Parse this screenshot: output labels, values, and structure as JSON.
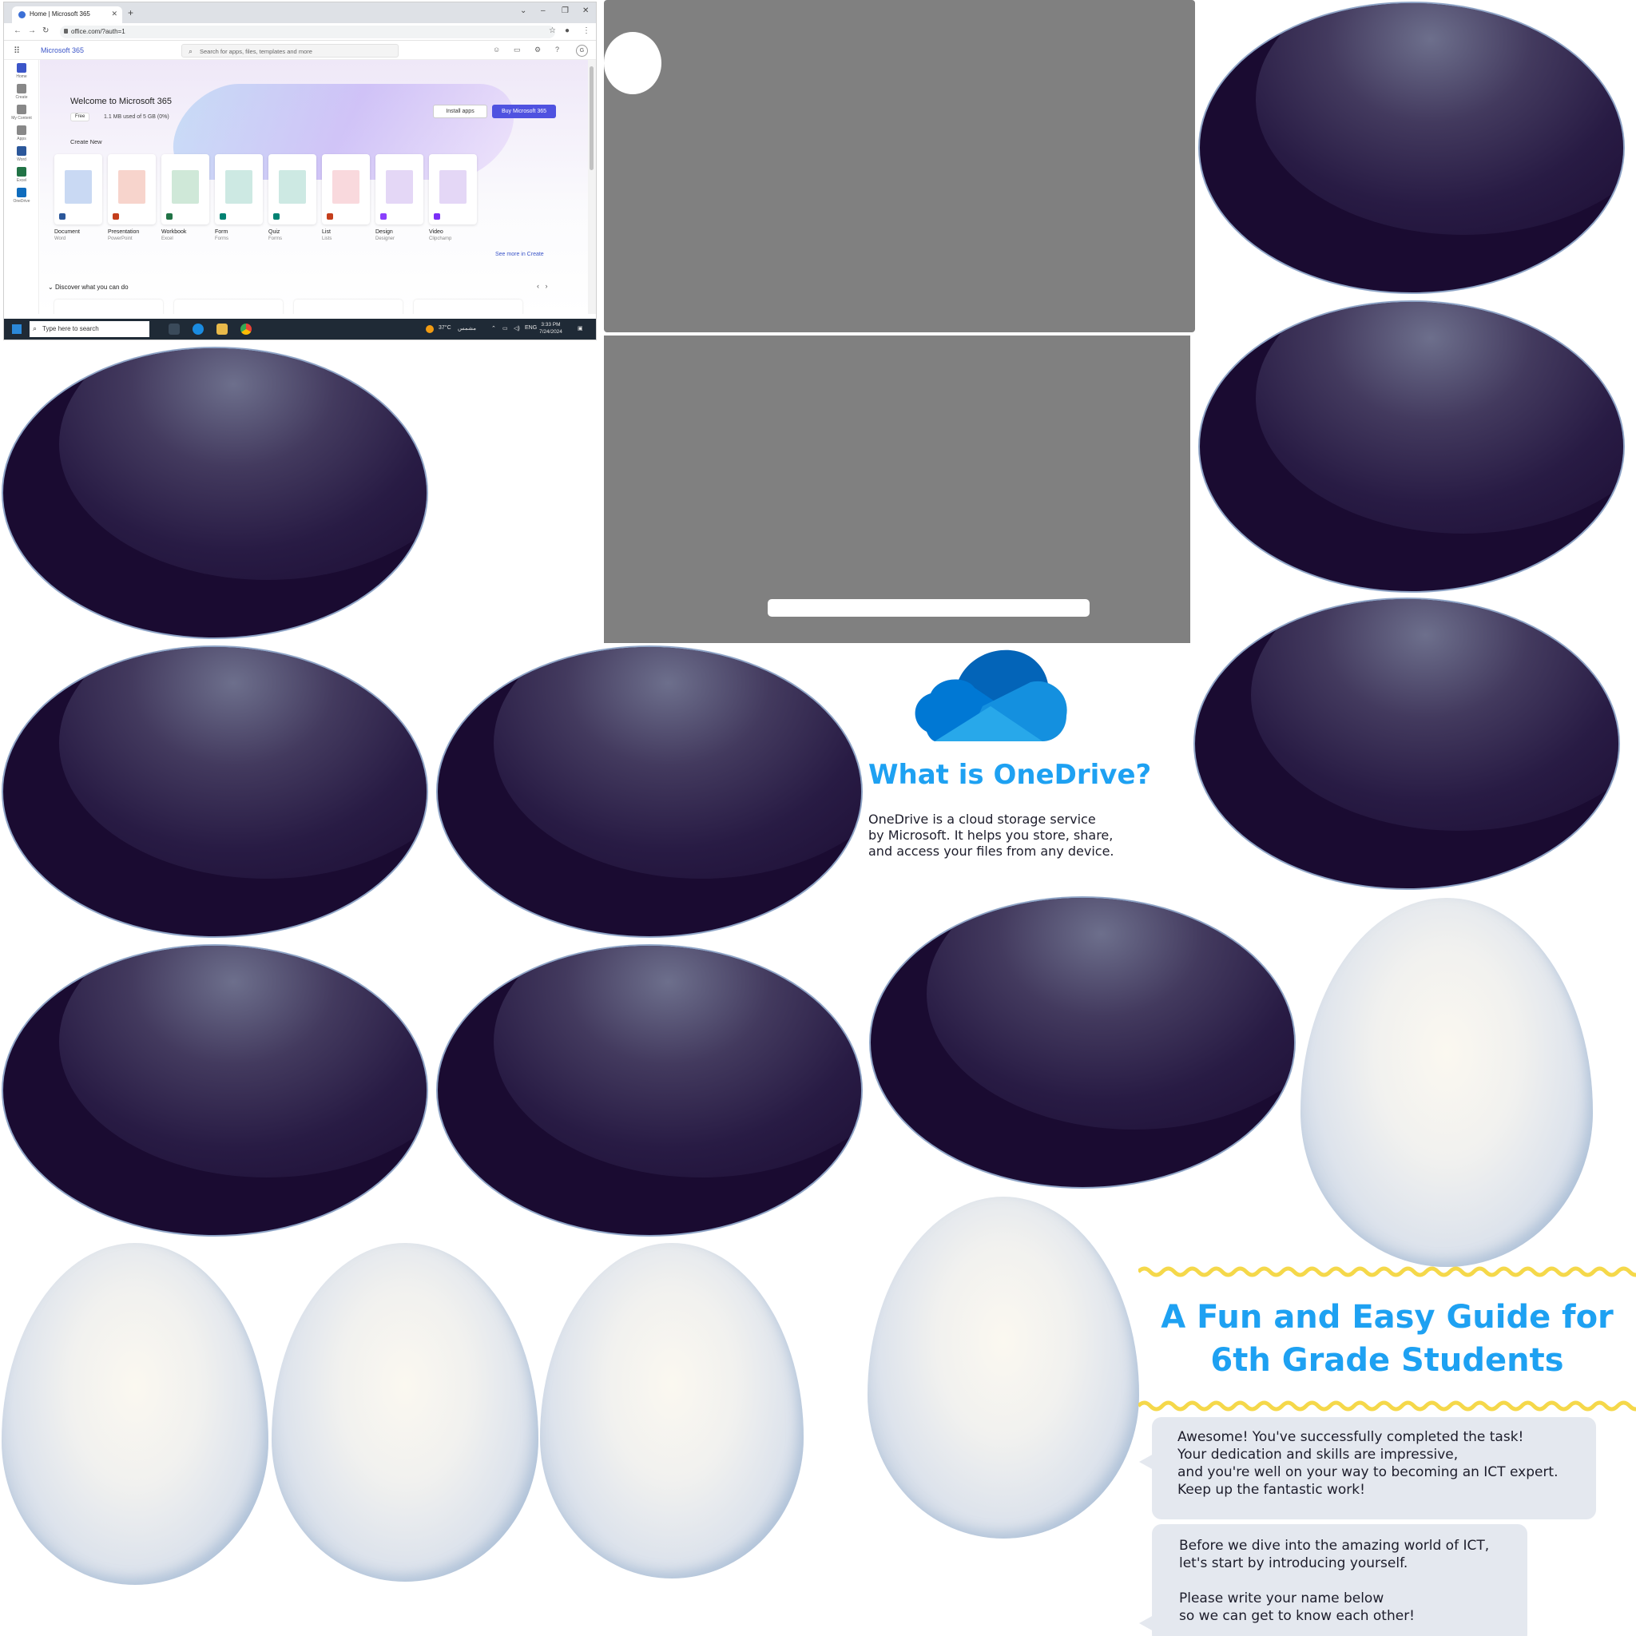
{
  "screenshot": {
    "tab_title": "Home | Microsoft 365",
    "url": "office.com/?auth=1",
    "brand": "Microsoft 365",
    "search_placeholder": "Search for apps, files, templates and more",
    "avatar_initial": "G",
    "rail": [
      {
        "label": "Home",
        "color": "#3b55c8"
      },
      {
        "label": "Create",
        "color": "#888888"
      },
      {
        "label": "My Content",
        "color": "#888888"
      },
      {
        "label": "Apps",
        "color": "#888888"
      },
      {
        "label": "Word",
        "color": "#2b579a"
      },
      {
        "label": "Excel",
        "color": "#217346"
      },
      {
        "label": "OneDrive",
        "color": "#0f6cbd"
      }
    ],
    "welcome": "Welcome to Microsoft 365",
    "plan_badge": "Free",
    "storage": "1.1 MB used of 5 GB (0%)",
    "install_button": "Install apps",
    "buy_button": "Buy Microsoft 365",
    "create_new": "Create New",
    "cards": [
      {
        "title": "Document",
        "app": "Word",
        "color": "#c9d9f3",
        "app_color": "#2b579a"
      },
      {
        "title": "Presentation",
        "app": "PowerPoint",
        "color": "#f7d4cc",
        "app_color": "#c43e1c"
      },
      {
        "title": "Workbook",
        "app": "Excel",
        "color": "#cfe8d8",
        "app_color": "#217346"
      },
      {
        "title": "Form",
        "app": "Forms",
        "color": "#cde9e3",
        "app_color": "#008272"
      },
      {
        "title": "Quiz",
        "app": "Forms",
        "color": "#cde9e3",
        "app_color": "#008272"
      },
      {
        "title": "List",
        "app": "Lists",
        "color": "#f9d9dd",
        "app_color": "#c43e1c"
      },
      {
        "title": "Design",
        "app": "Designer",
        "color": "#e4d7f6",
        "app_color": "#8a3ffc"
      },
      {
        "title": "Video",
        "app": "Clipchamp",
        "color": "#e4d7f6",
        "app_color": "#7b2ff7"
      }
    ],
    "see_more": "See more in Create",
    "discover": "Discover what you can do",
    "taskbar_search": "Type here to search",
    "weather": "37°C",
    "weather_desc": "مشمس",
    "lang": "ENG",
    "time": "3:33 PM",
    "date": "7/24/2024"
  },
  "onedrive": {
    "title": "What is OneDrive?",
    "description_lines": [
      "OneDrive is a cloud storage service",
      "by Microsoft. It helps you store, share,",
      "and access your files from any device."
    ],
    "cloud_colors": [
      "#0364b8",
      "#0078d4",
      "#1490df",
      "#28a8ea"
    ]
  },
  "guide": {
    "title_lines": [
      "A Fun and Easy Guide for",
      "6th Grade Students"
    ],
    "accent": "#1ea1f2",
    "wave_color": "#f5d84a"
  },
  "bubble1": {
    "lines": [
      "Awesome! You've successfully completed the task!",
      "Your dedication and skills are impressive,",
      "and you're well on your way to becoming an ICT expert.",
      "Keep up the fantastic work!"
    ]
  },
  "bubble2": {
    "lines_top": [
      "Before we dive into the amazing world of ICT,",
      "let's start by introducing yourself."
    ],
    "lines_bottom": [
      "Please write your name below",
      "so we can get to know each other!"
    ]
  },
  "colors": {
    "oval_dark": "#1a0b31",
    "oval_rim": "#8fa5c7",
    "placeholder_grey": "#808080"
  }
}
